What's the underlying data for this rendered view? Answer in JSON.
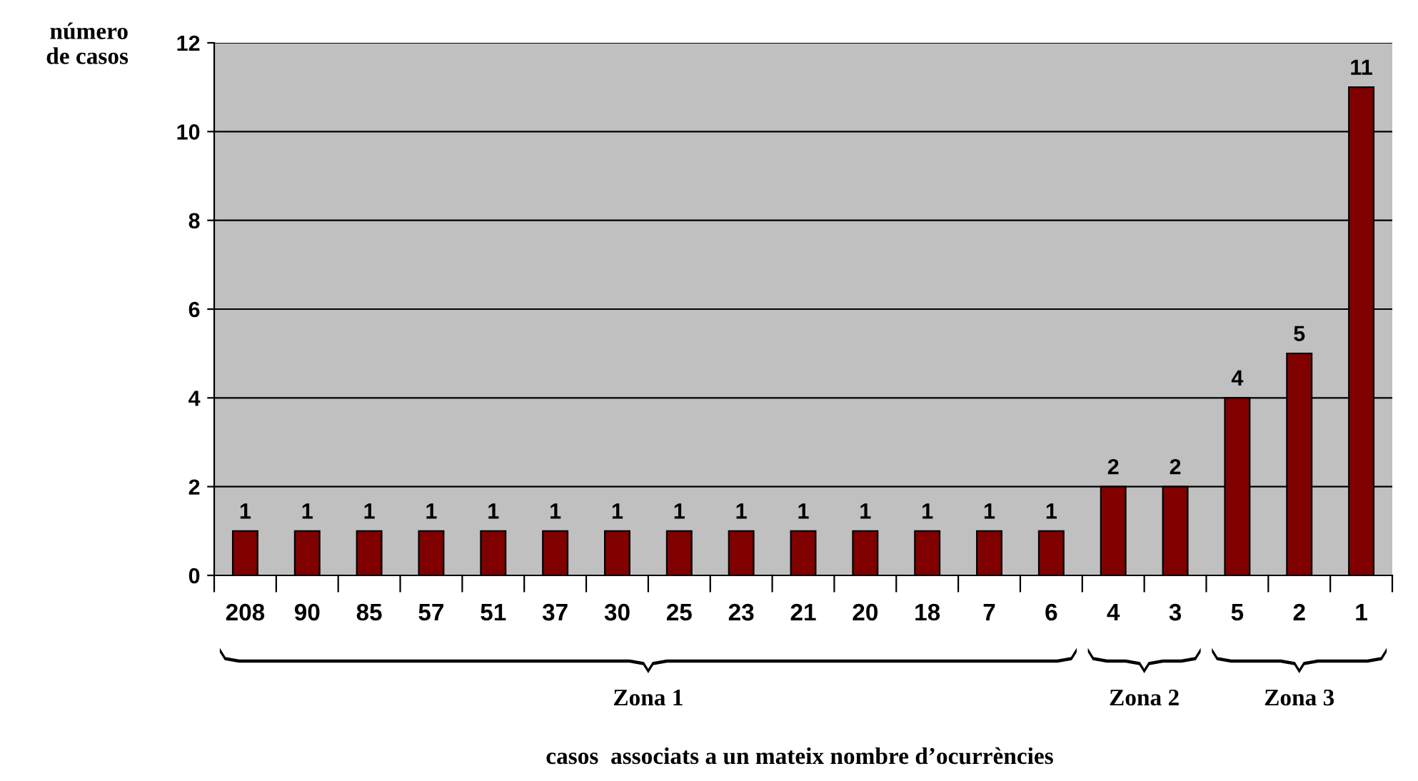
{
  "chart_data": {
    "type": "bar",
    "ylabel": "número de casos",
    "categories": [
      "208",
      "90",
      "85",
      "57",
      "51",
      "37",
      "30",
      "25",
      "23",
      "21",
      "20",
      "18",
      "7",
      "6",
      "4",
      "3",
      "5",
      "2",
      "1"
    ],
    "values": [
      1,
      1,
      1,
      1,
      1,
      1,
      1,
      1,
      1,
      1,
      1,
      1,
      1,
      1,
      2,
      2,
      4,
      5,
      11
    ],
    "color": "#800000",
    "ylim": [
      0,
      12
    ],
    "yticks": [
      0,
      2,
      4,
      6,
      8,
      10,
      12
    ],
    "grid": "y",
    "data_labels": true,
    "annotations": [
      "Zona 1",
      "Zona 2",
      "Zona 3",
      "casos  associats a un mateix nombre d’ocurrències"
    ]
  }
}
